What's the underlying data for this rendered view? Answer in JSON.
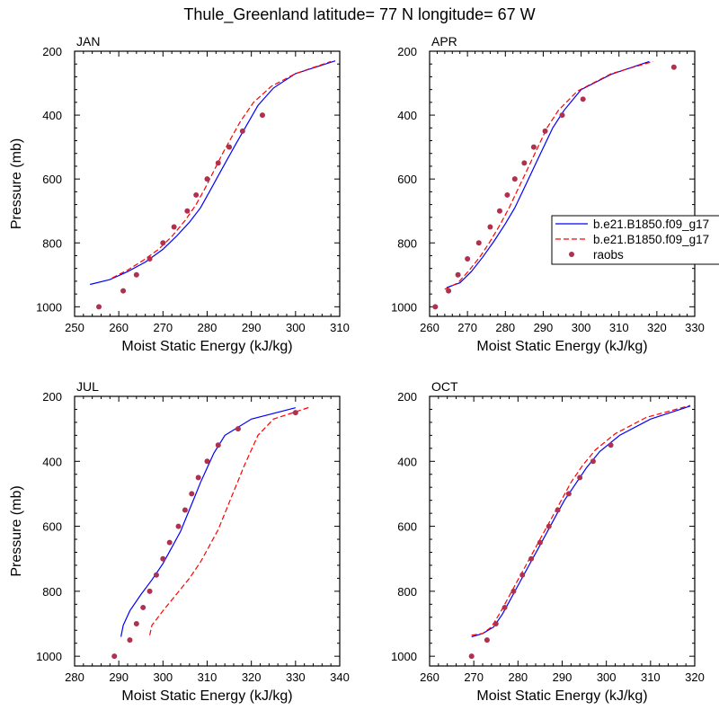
{
  "figure": {
    "title": "Thule_Greenland  latitude= 77 N longitude= 67 W"
  },
  "legend": {
    "entries": [
      {
        "label": "b.e21.B1850.f09_g17",
        "style": "solid",
        "color": "#0000ff"
      },
      {
        "label": "b.e21.B1850.f09_g17",
        "style": "dashed",
        "color": "#ff0000"
      },
      {
        "label": "raobs",
        "style": "marker",
        "color": "#b03050"
      }
    ]
  },
  "colors": {
    "solid_line": "#0000ff",
    "dashed_line": "#ff0000",
    "markers": "#b03050"
  },
  "chart_data": [
    {
      "type": "line",
      "panel": "JAN",
      "xlabel": "Moist Static Energy (kJ/kg)",
      "ylabel": "Pressure (mb)",
      "xlim": [
        250,
        310
      ],
      "ylim": [
        200,
        1030
      ],
      "y_inverted": true,
      "xticks": [
        250,
        260,
        270,
        280,
        290,
        300,
        310
      ],
      "yticks": [
        200,
        400,
        600,
        800,
        1000
      ],
      "series": [
        {
          "label": "b.e21.B1850.f09_g17",
          "style": "solid",
          "points": [
            [
              253.5,
              930
            ],
            [
              258,
              915
            ],
            [
              262,
              890
            ],
            [
              266,
              860
            ],
            [
              270,
              820
            ],
            [
              273,
              780
            ],
            [
              276,
              735
            ],
            [
              278.5,
              690
            ],
            [
              280.5,
              640
            ],
            [
              282.5,
              590
            ],
            [
              284.5,
              540
            ],
            [
              286.5,
              490
            ],
            [
              289,
              430
            ],
            [
              291.5,
              370
            ],
            [
              295,
              315
            ],
            [
              300,
              270
            ],
            [
              309,
              230
            ]
          ]
        },
        {
          "label": "b.e21.B1850.f09_g17",
          "style": "dashed",
          "points": [
            [
              258.5,
              910
            ],
            [
              262,
              885
            ],
            [
              265.5,
              855
            ],
            [
              269,
              820
            ],
            [
              272,
              780
            ],
            [
              275,
              730
            ],
            [
              277.5,
              680
            ],
            [
              279.5,
              630
            ],
            [
              281.5,
              575
            ],
            [
              283.5,
              520
            ],
            [
              285.5,
              470
            ],
            [
              287.5,
              420
            ],
            [
              290.5,
              360
            ],
            [
              294.5,
              310
            ],
            [
              300,
              270
            ],
            [
              308,
              232
            ]
          ]
        },
        {
          "label": "raobs",
          "style": "marker",
          "points": [
            [
              255.5,
              1000
            ],
            [
              261,
              950
            ],
            [
              264,
              900
            ],
            [
              267,
              850
            ],
            [
              270,
              800
            ],
            [
              272.5,
              750
            ],
            [
              275.5,
              700
            ],
            [
              277.5,
              650
            ],
            [
              280,
              600
            ],
            [
              282.5,
              550
            ],
            [
              285,
              500
            ],
            [
              288,
              450
            ],
            [
              292.5,
              400
            ]
          ]
        }
      ]
    },
    {
      "type": "line",
      "panel": "APR",
      "xlabel": "Moist Static Energy (kJ/kg)",
      "ylabel": "",
      "xlim": [
        260,
        330
      ],
      "ylim": [
        200,
        1030
      ],
      "y_inverted": true,
      "xticks": [
        260,
        270,
        280,
        290,
        300,
        310,
        320,
        330
      ],
      "yticks": [
        200,
        400,
        600,
        800,
        1000
      ],
      "series": [
        {
          "label": "b.e21.B1850.f09_g17",
          "style": "solid",
          "points": [
            [
              264.5,
              940
            ],
            [
              268,
              925
            ],
            [
              271,
              890
            ],
            [
              274,
              845
            ],
            [
              277,
              795
            ],
            [
              280,
              740
            ],
            [
              282.5,
              690
            ],
            [
              284.5,
              640
            ],
            [
              286.5,
              590
            ],
            [
              288.5,
              540
            ],
            [
              290.5,
              490
            ],
            [
              292.5,
              440
            ],
            [
              295.5,
              385
            ],
            [
              300,
              320
            ],
            [
              308,
              272
            ],
            [
              318,
              232
            ]
          ]
        },
        {
          "label": "b.e21.B1850.f09_g17",
          "style": "dashed",
          "points": [
            [
              264,
              945
            ],
            [
              267.5,
              925
            ],
            [
              270.5,
              885
            ],
            [
              273.5,
              840
            ],
            [
              276,
              795
            ],
            [
              278.5,
              745
            ],
            [
              281,
              690
            ],
            [
              283,
              640
            ],
            [
              285,
              590
            ],
            [
              287,
              540
            ],
            [
              289,
              490
            ],
            [
              291,
              440
            ],
            [
              294,
              385
            ],
            [
              299,
              325
            ],
            [
              308,
              270
            ],
            [
              319,
              232
            ]
          ]
        },
        {
          "label": "raobs",
          "style": "marker",
          "points": [
            [
              261.5,
              1000
            ],
            [
              265,
              950
            ],
            [
              267.5,
              900
            ],
            [
              270,
              850
            ],
            [
              273,
              800
            ],
            [
              276,
              750
            ],
            [
              278.5,
              700
            ],
            [
              280.5,
              650
            ],
            [
              282.5,
              600
            ],
            [
              285,
              550
            ],
            [
              287.5,
              500
            ],
            [
              290.5,
              450
            ],
            [
              295,
              400
            ],
            [
              300.5,
              350
            ],
            [
              324.5,
              250
            ]
          ]
        }
      ]
    },
    {
      "type": "line",
      "panel": "JUL",
      "xlabel": "Moist Static Energy (kJ/kg)",
      "ylabel": "Pressure (mb)",
      "xlim": [
        280,
        340
      ],
      "ylim": [
        200,
        1030
      ],
      "y_inverted": true,
      "xticks": [
        280,
        290,
        300,
        310,
        320,
        330,
        340
      ],
      "yticks": [
        200,
        400,
        600,
        800,
        1000
      ],
      "series": [
        {
          "label": "b.e21.B1850.f09_g17",
          "style": "solid",
          "points": [
            [
              290.5,
              940
            ],
            [
              291,
              905
            ],
            [
              292.5,
              860
            ],
            [
              295,
              810
            ],
            [
              297.5,
              765
            ],
            [
              300,
              715
            ],
            [
              302,
              665
            ],
            [
              304,
              615
            ],
            [
              305.5,
              565
            ],
            [
              307,
              515
            ],
            [
              308.5,
              465
            ],
            [
              310,
              420
            ],
            [
              311.5,
              375
            ],
            [
              314,
              320
            ],
            [
              320,
              270
            ],
            [
              330,
              235
            ]
          ]
        },
        {
          "label": "b.e21.B1850.f09_g17",
          "style": "dashed",
          "points": [
            [
              297,
              935
            ],
            [
              297.5,
              905
            ],
            [
              300,
              860
            ],
            [
              303,
              810
            ],
            [
              306,
              760
            ],
            [
              308.5,
              710
            ],
            [
              310.5,
              660
            ],
            [
              312.5,
              610
            ],
            [
              314,
              560
            ],
            [
              315.5,
              510
            ],
            [
              317,
              460
            ],
            [
              318.5,
              410
            ],
            [
              320,
              365
            ],
            [
              321.5,
              320
            ],
            [
              325,
              270
            ],
            [
              333.5,
              232
            ]
          ]
        },
        {
          "label": "raobs",
          "style": "marker",
          "points": [
            [
              289,
              1000
            ],
            [
              292.5,
              950
            ],
            [
              294,
              900
            ],
            [
              295.5,
              850
            ],
            [
              297,
              800
            ],
            [
              298.5,
              750
            ],
            [
              300,
              700
            ],
            [
              301.5,
              650
            ],
            [
              303.5,
              600
            ],
            [
              305,
              550
            ],
            [
              306.5,
              500
            ],
            [
              308,
              450
            ],
            [
              310,
              400
            ],
            [
              312.5,
              350
            ],
            [
              317,
              300
            ],
            [
              330,
              250
            ]
          ]
        }
      ]
    },
    {
      "type": "line",
      "panel": "OCT",
      "xlabel": "Moist Static Energy (kJ/kg)",
      "ylabel": "",
      "xlim": [
        260,
        320
      ],
      "ylim": [
        200,
        1030
      ],
      "y_inverted": true,
      "xticks": [
        260,
        270,
        280,
        290,
        300,
        310,
        320
      ],
      "yticks": [
        200,
        400,
        600,
        800,
        1000
      ],
      "series": [
        {
          "label": "b.e21.B1850.f09_g17",
          "style": "solid",
          "points": [
            [
              269.5,
              940
            ],
            [
              272,
              930
            ],
            [
              274.5,
              910
            ],
            [
              276.5,
              870
            ],
            [
              278.5,
              820
            ],
            [
              280.5,
              770
            ],
            [
              282.5,
              720
            ],
            [
              284.5,
              670
            ],
            [
              286.5,
              620
            ],
            [
              288.5,
              570
            ],
            [
              290.5,
              520
            ],
            [
              293,
              470
            ],
            [
              295.5,
              420
            ],
            [
              298.5,
              370
            ],
            [
              303,
              320
            ],
            [
              310,
              270
            ],
            [
              319,
              230
            ]
          ]
        },
        {
          "label": "b.e21.B1850.f09_g17",
          "style": "dashed",
          "points": [
            [
              269.5,
              935
            ],
            [
              272,
              930
            ],
            [
              274,
              910
            ],
            [
              276,
              865
            ],
            [
              278,
              815
            ],
            [
              280,
              765
            ],
            [
              282,
              715
            ],
            [
              284,
              665
            ],
            [
              286,
              615
            ],
            [
              288,
              565
            ],
            [
              290,
              515
            ],
            [
              292,
              465
            ],
            [
              294.5,
              415
            ],
            [
              297.5,
              365
            ],
            [
              302,
              315
            ],
            [
              309,
              265
            ],
            [
              319,
              228
            ]
          ]
        },
        {
          "label": "raobs",
          "style": "marker",
          "points": [
            [
              269.5,
              1000
            ],
            [
              273,
              950
            ],
            [
              275,
              900
            ],
            [
              277,
              850
            ],
            [
              279,
              800
            ],
            [
              281,
              750
            ],
            [
              283,
              700
            ],
            [
              285,
              650
            ],
            [
              287,
              600
            ],
            [
              289,
              550
            ],
            [
              291.5,
              500
            ],
            [
              294,
              450
            ],
            [
              297,
              400
            ],
            [
              301,
              350
            ]
          ]
        }
      ]
    }
  ]
}
